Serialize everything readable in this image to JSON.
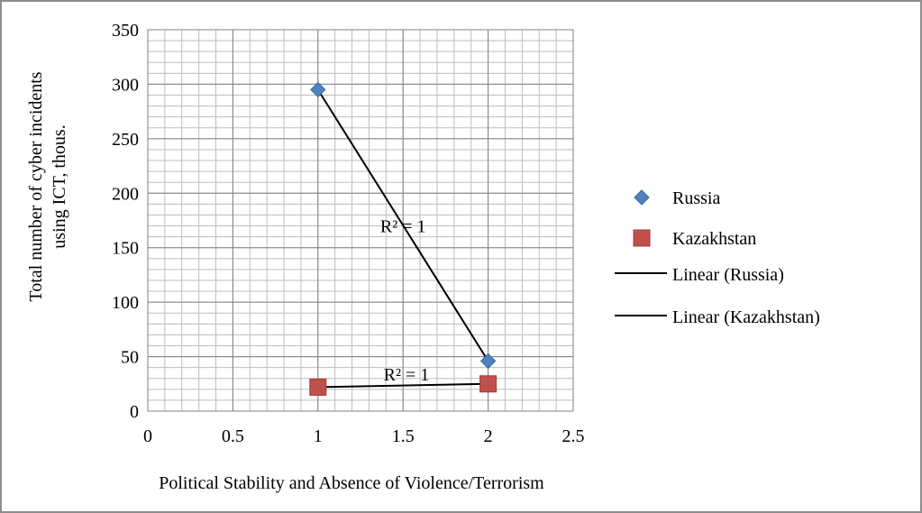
{
  "chart_data": {
    "type": "scatter",
    "xlabel": "Political Stability and Absence  of Violence/Terrorism",
    "ylabel_lines": [
      "Total number of cyber incidents",
      "using ICT, thous."
    ],
    "xlim": [
      0,
      2.5
    ],
    "ylim": [
      0,
      350
    ],
    "x_ticks": [
      "0",
      "0.5",
      "1",
      "1.5",
      "2",
      "2.5"
    ],
    "y_ticks": [
      "0",
      "50",
      "100",
      "150",
      "200",
      "250",
      "300",
      "350"
    ],
    "grid": true,
    "legend_position": "right",
    "series": [
      {
        "name": "Russia",
        "marker": "diamond",
        "color": "#4F81BD",
        "points": [
          {
            "x": 1,
            "y": 295
          },
          {
            "x": 2,
            "y": 46
          }
        ],
        "trendline": {
          "name": "Linear (Russia)",
          "label": "R² = 1",
          "color": "#000000"
        }
      },
      {
        "name": "Kazakhstan",
        "marker": "square",
        "color": "#C0504D",
        "points": [
          {
            "x": 1,
            "y": 22
          },
          {
            "x": 2,
            "y": 25
          }
        ],
        "trendline": {
          "name": "Linear (Kazakhstan)",
          "label": "R² = 1",
          "color": "#000000"
        }
      }
    ]
  }
}
